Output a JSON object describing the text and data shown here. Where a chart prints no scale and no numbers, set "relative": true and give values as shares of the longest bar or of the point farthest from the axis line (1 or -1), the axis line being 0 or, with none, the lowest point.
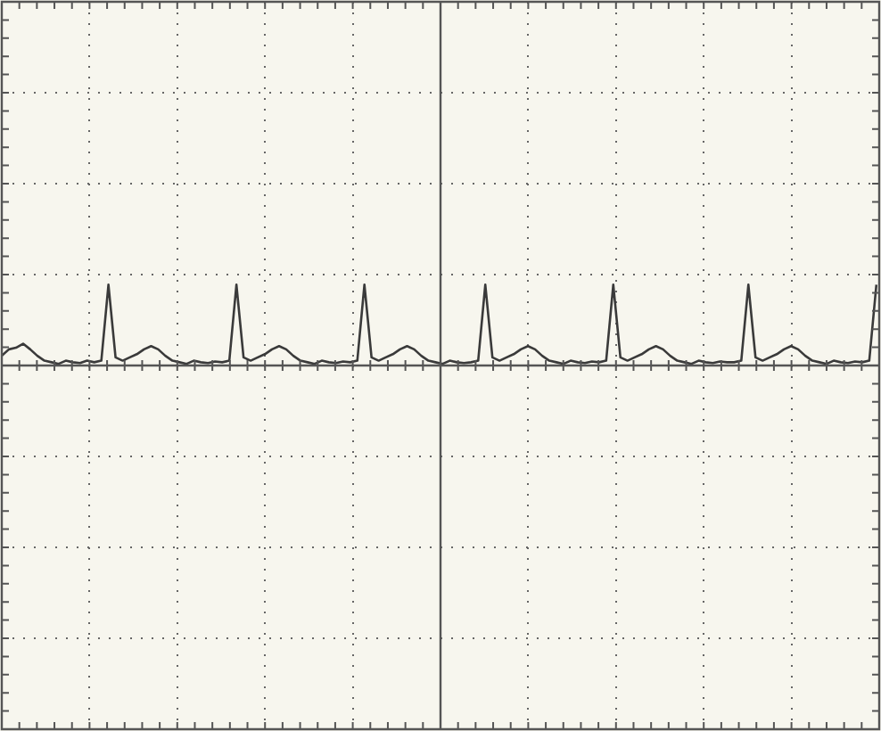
{
  "chart_data": {
    "type": "line",
    "relative": true,
    "grid": true,
    "marker": "none",
    "line_style": "solid",
    "legend": false,
    "tick_labels": false,
    "categories": [
      null,
      null,
      null,
      null,
      null,
      null,
      null,
      null,
      null,
      null,
      null,
      null,
      null,
      null,
      null,
      null,
      null,
      null,
      null,
      null,
      null,
      null,
      null,
      null,
      null,
      null,
      null,
      null,
      null,
      null,
      null,
      null,
      null,
      null,
      null,
      null,
      null,
      null,
      null,
      null,
      null,
      null,
      null,
      null,
      null,
      null,
      null,
      null,
      null,
      null,
      null,
      null,
      null,
      null,
      null,
      null,
      null,
      null,
      null,
      null,
      null,
      null,
      null,
      null,
      null,
      null,
      null,
      null,
      null,
      null,
      null,
      null,
      null,
      null,
      null,
      null,
      null,
      null,
      null,
      null,
      null,
      null,
      null,
      null,
      null,
      null,
      null,
      null,
      null,
      null,
      null,
      null,
      null,
      null,
      null,
      null,
      null,
      null,
      null,
      null,
      null,
      null,
      null,
      null,
      null,
      null,
      null,
      null,
      null,
      null,
      null,
      null,
      null,
      null,
      null,
      null,
      null,
      null,
      null,
      null,
      null,
      null,
      null,
      null
    ],
    "series": [
      {
        "color": "#3a3a3a",
        "values": [
          0.12,
          0.2,
          0.22,
          0.27,
          0.2,
          0.12,
          0.06,
          0.04,
          0.02,
          0.06,
          0.04,
          0.03,
          0.06,
          0.04,
          0.06,
          1,
          0.1,
          0.06,
          0.1,
          0.14,
          0.2,
          0.24,
          0.2,
          0.12,
          0.06,
          0.04,
          0.02,
          0.06,
          0.04,
          0.03,
          0.05,
          0.04,
          0.06,
          1,
          0.1,
          0.06,
          0.1,
          0.14,
          0.2,
          0.24,
          0.2,
          0.12,
          0.06,
          0.04,
          0.02,
          0.06,
          0.04,
          0.03,
          0.05,
          0.04,
          0.06,
          1,
          0.1,
          0.06,
          0.1,
          0.14,
          0.2,
          0.24,
          0.2,
          0.12,
          0.06,
          0.04,
          0.02,
          0.06,
          0.04,
          0.03,
          0.04,
          0.06,
          1,
          0.1,
          0.06,
          0.1,
          0.14,
          0.2,
          0.24,
          0.2,
          0.12,
          0.06,
          0.04,
          0.02,
          0.06,
          0.04,
          0.03,
          0.05,
          0.04,
          0.06,
          1,
          0.1,
          0.06,
          0.1,
          0.14,
          0.2,
          0.24,
          0.2,
          0.12,
          0.06,
          0.04,
          0.02,
          0.06,
          0.04,
          0.03,
          0.05,
          0.04,
          0.04,
          0.06,
          1,
          0.1,
          0.06,
          0.1,
          0.14,
          0.2,
          0.24,
          0.2,
          0.12,
          0.06,
          0.04,
          0.02,
          0.06,
          0.04,
          0.03,
          0.05,
          0.04,
          0.06,
          1
        ]
      }
    ]
  }
}
